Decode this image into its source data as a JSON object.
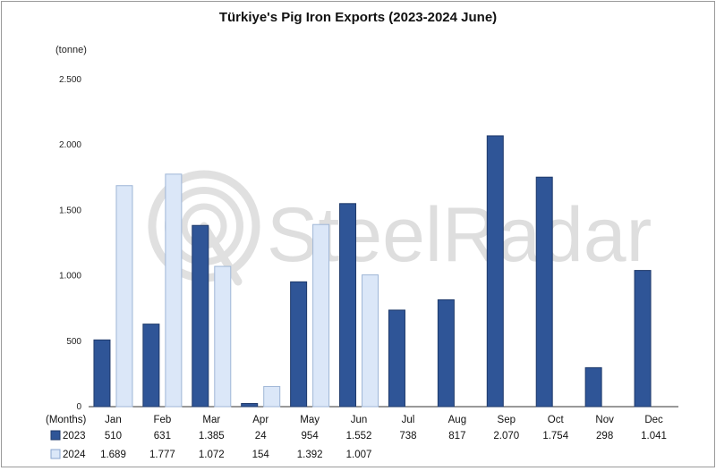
{
  "chart_data": {
    "type": "bar",
    "title": "Türkiye's Pig Iron Exports (2023-2024 June)",
    "ylabel": "(tonne)",
    "xlabel": "(Months)",
    "ylim": [
      0,
      2500
    ],
    "yticks": [
      0,
      500,
      1000,
      1500,
      2000,
      2500
    ],
    "ytick_labels": [
      "0",
      "500",
      "1.000",
      "1.500",
      "2.000",
      "2.500"
    ],
    "grid": false,
    "legend": "bottom-left data table",
    "watermark": "SteelRadar",
    "categories": [
      "Jan",
      "Feb",
      "Mar",
      "Apr",
      "May",
      "Jun",
      "Jul",
      "Aug",
      "Sep",
      "Oct",
      "Nov",
      "Dec"
    ],
    "series": [
      {
        "name": "2023",
        "color": "#2f5597",
        "values": [
          510,
          631,
          1385,
          24,
          954,
          1552,
          738,
          817,
          2070,
          1754,
          298,
          1041
        ],
        "labels": [
          "510",
          "631",
          "1.385",
          "24",
          "954",
          "1.552",
          "738",
          "817",
          "2.070",
          "1.754",
          "298",
          "1.041"
        ]
      },
      {
        "name": "2024",
        "color": "#dbe7f8",
        "values": [
          1689,
          1777,
          1072,
          154,
          1392,
          1007,
          null,
          null,
          null,
          null,
          null,
          null
        ],
        "labels": [
          "1.689",
          "1.777",
          "1.072",
          "154",
          "1.392",
          "1.007",
          "",
          "",
          "",
          "",
          "",
          ""
        ]
      }
    ]
  }
}
